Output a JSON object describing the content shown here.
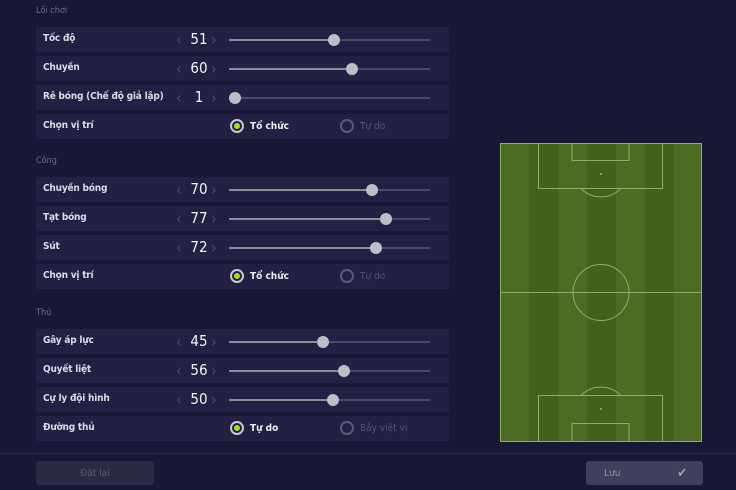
{
  "sections": [
    {
      "title": "Lối chơi",
      "sliders": [
        {
          "label": "Tốc độ",
          "value": 51
        },
        {
          "label": "Chuyền",
          "value": 60
        },
        {
          "label": "Rê bóng (Chế độ giả lập)",
          "value": 1
        }
      ],
      "radio": {
        "label": "Chọn vị trí",
        "options": [
          "Tổ chức",
          "Tự do"
        ],
        "selected": 0
      }
    },
    {
      "title": "Công",
      "sliders": [
        {
          "label": "Chuyền bóng",
          "value": 70
        },
        {
          "label": "Tạt bóng",
          "value": 77
        },
        {
          "label": "Sút",
          "value": 72
        }
      ],
      "radio": {
        "label": "Chọn vị trí",
        "options": [
          "Tổ chức",
          "Tự do"
        ],
        "selected": 0
      }
    },
    {
      "title": "Thủ",
      "sliders": [
        {
          "label": "Gây áp lực",
          "value": 45
        },
        {
          "label": "Quyết liệt",
          "value": 56
        },
        {
          "label": "Cự ly đội hình",
          "value": 50
        }
      ],
      "radio": {
        "label": "Đường thủ",
        "options": [
          "Tự do",
          "Bẫy việt vị"
        ],
        "selected": 0
      }
    }
  ],
  "footer": {
    "reset_label": "Đặt lại",
    "save_label": "Lưu"
  },
  "colors": {
    "accent": "#a6e01a",
    "pitch": "#4a6b22",
    "background": "#181735"
  }
}
